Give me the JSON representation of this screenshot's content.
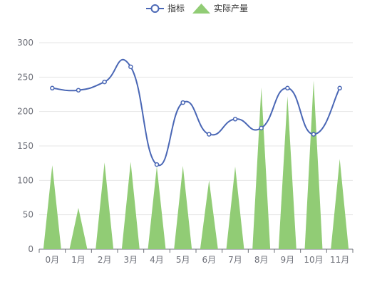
{
  "chart_data": {
    "type": "line",
    "title": "",
    "xlabel": "",
    "ylabel": "",
    "categories": [
      "0月",
      "1月",
      "2月",
      "3月",
      "4月",
      "5月",
      "6月",
      "7月",
      "8月",
      "9月",
      "10月",
      "11月"
    ],
    "ylim": [
      0,
      300
    ],
    "yticks": [
      0,
      50,
      100,
      150,
      200,
      250,
      300
    ],
    "grid": true,
    "legend_position": "top-center",
    "series": [
      {
        "name": "指标",
        "type": "line",
        "smooth": true,
        "color": "#4a67b5",
        "values": [
          234,
          231,
          243,
          265,
          123,
          213,
          167,
          189,
          176,
          234,
          167,
          234
        ]
      },
      {
        "name": "实际产量",
        "type": "pictorial-triangle",
        "color": "#91cc75",
        "values": [
          122,
          60,
          126,
          127,
          120,
          121,
          100,
          120,
          235,
          222,
          245,
          131
        ]
      }
    ]
  }
}
